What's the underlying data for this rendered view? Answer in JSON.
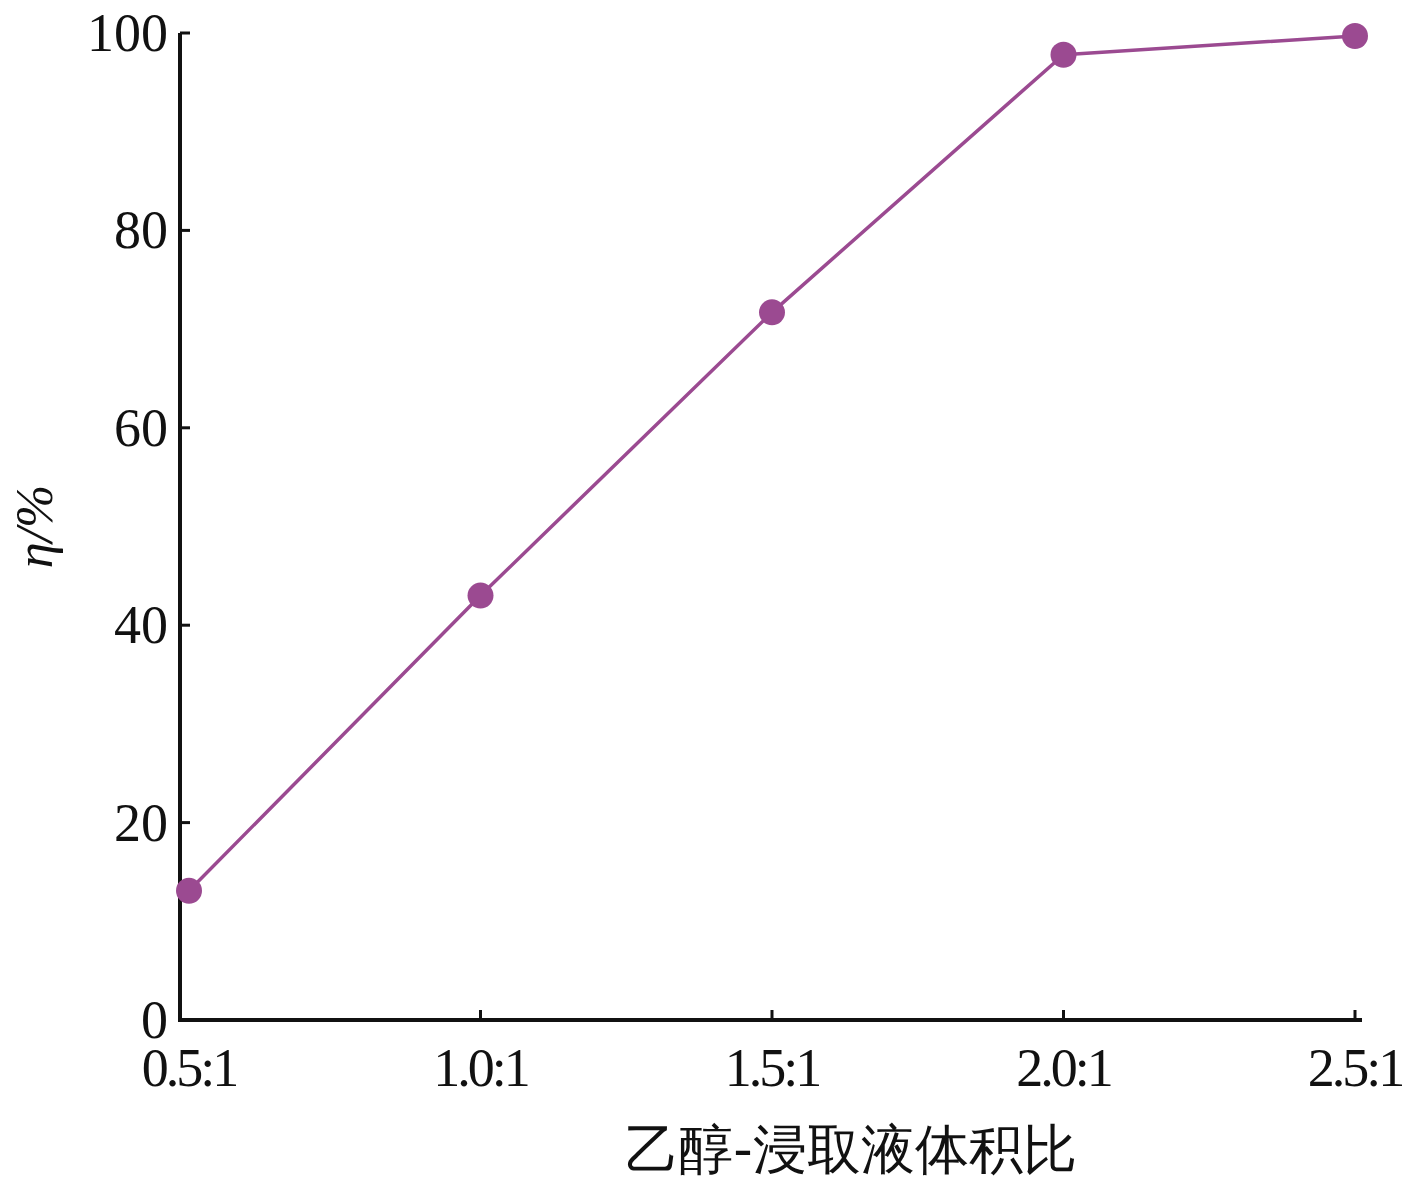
{
  "chart_data": {
    "type": "line",
    "xlabel": "乙醇-浸取液体积比",
    "ylabel": "η/%",
    "categories": [
      "0.5:1",
      "1.0:1",
      "1.5:1",
      "2.0:1",
      "2.5:1"
    ],
    "series": [
      {
        "color": "#9b4a91",
        "values": [
          13.1,
          43.0,
          71.7,
          97.8,
          99.7
        ]
      }
    ],
    "ylim": [
      0,
      100
    ],
    "yticks": [
      0,
      20,
      40,
      60,
      80,
      100
    ],
    "marker": "circle",
    "grid": false
  }
}
